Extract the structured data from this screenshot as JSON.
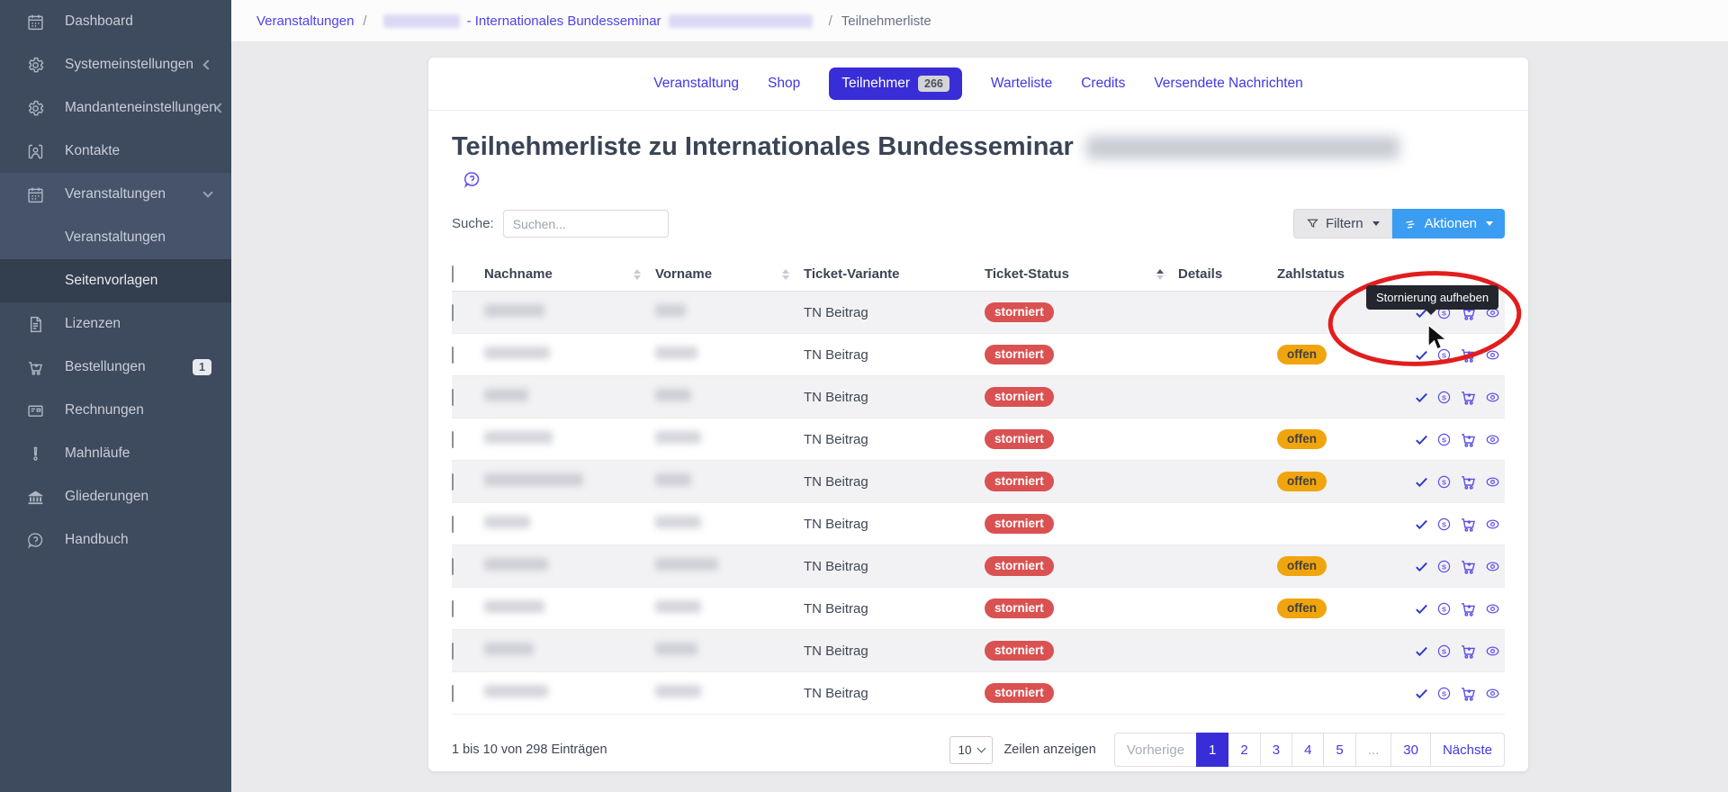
{
  "colors": {
    "sidebar_bg": "#3e4a5e",
    "sidebar_active_bg": "#333e4e",
    "accent_indigo": "#382dd7",
    "link_indigo": "#4238e5",
    "action_blue": "#3b9df2",
    "badge_storniert": "#da5151",
    "badge_offen": "#f0a50f",
    "annotation_red": "#e21d1d",
    "tooltip_bg": "#23262e"
  },
  "sidebar": {
    "items": [
      {
        "label": "Dashboard",
        "icon": "dashboard-icon"
      },
      {
        "label": "Systemeinstellungen",
        "icon": "gear-icon",
        "chevron": "left"
      },
      {
        "label": "Mandanteneinstellungen",
        "icon": "gear-icon",
        "chevron": "left"
      },
      {
        "label": "Kontakte",
        "icon": "contacts-icon"
      },
      {
        "label": "Veranstaltungen",
        "icon": "calendar-icon",
        "chevron": "down",
        "highlight": true
      },
      {
        "label": "Veranstaltungen",
        "sub": true,
        "highlight": true
      },
      {
        "label": "Seitenvorlagen",
        "sub": true,
        "active": true
      },
      {
        "label": "Lizenzen",
        "icon": "document-icon"
      },
      {
        "label": "Bestellungen",
        "icon": "cart-icon",
        "badge": "1"
      },
      {
        "label": "Rechnungen",
        "icon": "invoice-icon"
      },
      {
        "label": "Mahnläufe",
        "icon": "exclamation-icon"
      },
      {
        "label": "Gliederungen",
        "icon": "bank-icon"
      },
      {
        "label": "Handbuch",
        "icon": "help-bubble-icon"
      }
    ]
  },
  "breadcrumb": {
    "segments": [
      {
        "type": "link",
        "label": "Veranstaltungen"
      },
      {
        "type": "sep",
        "label": "/"
      },
      {
        "type": "redacted",
        "width": 85
      },
      {
        "type": "link",
        "label": "- Internationales Bundesseminar"
      },
      {
        "type": "redacted",
        "width": 160
      },
      {
        "type": "sep",
        "label": "/"
      },
      {
        "type": "text",
        "label": "Teilnehmerliste"
      }
    ]
  },
  "tabs": [
    {
      "label": "Veranstaltung"
    },
    {
      "label": "Shop"
    },
    {
      "label": "Teilnehmer",
      "badge": "266",
      "active": true
    },
    {
      "label": "Warteliste"
    },
    {
      "label": "Credits"
    },
    {
      "label": "Versendete Nachrichten"
    }
  ],
  "page": {
    "title": "Teilnehmerliste zu Internationales Bundesseminar",
    "title_redacted": true
  },
  "toolbar": {
    "search_label": "Suche:",
    "search_placeholder": "Suchen...",
    "filter_label": "Filtern",
    "actions_label": "Aktionen"
  },
  "table": {
    "columns": [
      {
        "type": "checkbox"
      },
      {
        "label": "Nachname",
        "sortable": true
      },
      {
        "label": "Vorname",
        "sortable": true
      },
      {
        "label": "Ticket-Variante"
      },
      {
        "label": "Ticket-Status",
        "sortable": true,
        "sorted": "asc"
      },
      {
        "label": "Details"
      },
      {
        "label": "Zahlstatus"
      },
      {
        "label": ""
      }
    ],
    "row_action_icons": [
      "uncancel-check-icon",
      "storno-icon",
      "cart-icon",
      "eye-icon"
    ],
    "rows": [
      {
        "nachname_redacted": true,
        "vorname_redacted": true,
        "ticket_variante": "TN Beitrag",
        "ticket_status": "storniert",
        "zahlstatus": ""
      },
      {
        "nachname_redacted": true,
        "vorname_redacted": true,
        "ticket_variante": "TN Beitrag",
        "ticket_status": "storniert",
        "zahlstatus": "offen"
      },
      {
        "nachname_redacted": true,
        "vorname_redacted": true,
        "ticket_variante": "TN Beitrag",
        "ticket_status": "storniert",
        "zahlstatus": ""
      },
      {
        "nachname_redacted": true,
        "vorname_redacted": true,
        "ticket_variante": "TN Beitrag",
        "ticket_status": "storniert",
        "zahlstatus": "offen"
      },
      {
        "nachname_redacted": true,
        "vorname_redacted": true,
        "ticket_variante": "TN Beitrag",
        "ticket_status": "storniert",
        "zahlstatus": "offen"
      },
      {
        "nachname_redacted": true,
        "vorname_redacted": true,
        "ticket_variante": "TN Beitrag",
        "ticket_status": "storniert",
        "zahlstatus": ""
      },
      {
        "nachname_redacted": true,
        "vorname_redacted": true,
        "ticket_variante": "TN Beitrag",
        "ticket_status": "storniert",
        "zahlstatus": "offen"
      },
      {
        "nachname_redacted": true,
        "vorname_redacted": true,
        "ticket_variante": "TN Beitrag",
        "ticket_status": "storniert",
        "zahlstatus": "offen"
      },
      {
        "nachname_redacted": true,
        "vorname_redacted": true,
        "ticket_variante": "TN Beitrag",
        "ticket_status": "storniert",
        "zahlstatus": ""
      },
      {
        "nachname_redacted": true,
        "vorname_redacted": true,
        "ticket_variante": "TN Beitrag",
        "ticket_status": "storniert",
        "zahlstatus": ""
      }
    ]
  },
  "tooltip": {
    "text": "Stornierung aufheben"
  },
  "footer": {
    "info": "1 bis 10 von 298 Einträgen",
    "page_size": "10",
    "rows_label": "Zeilen anzeigen",
    "prev": "Vorherige",
    "next": "Nächste",
    "pages": [
      "1",
      "2",
      "3",
      "4",
      "5",
      "...",
      "30"
    ],
    "active_page": "1"
  }
}
